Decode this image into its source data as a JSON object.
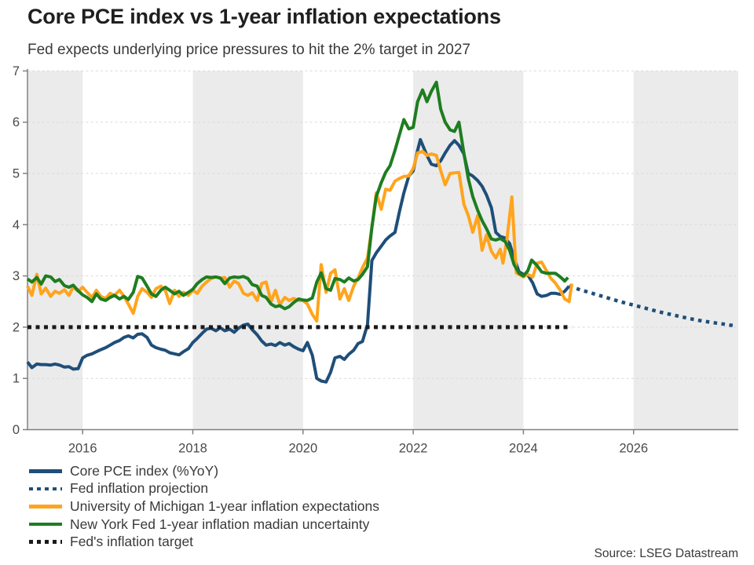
{
  "header": {
    "title": "Core PCE index vs 1-year inflation expectations",
    "subtitle": "Fed expects underlying price pressures to hit the 2% target in 2027"
  },
  "footer": {
    "source": "Source: LSEG Datastream"
  },
  "chart_data": {
    "type": "line",
    "title": "Core PCE index vs 1-year inflation expectations",
    "subtitle": "Fed expects underlying price pressures to hit the 2% target in 2027",
    "xlabel": "",
    "ylabel": "",
    "x_axis": {
      "min": 2015.0,
      "max": 2027.9,
      "ticks": [
        2016,
        2018,
        2020,
        2022,
        2024,
        2026
      ],
      "tick_labels": [
        "2016",
        "2018",
        "2020",
        "2022",
        "2024",
        "2026"
      ]
    },
    "y_axis": {
      "min": 0,
      "max": 7,
      "ticks": [
        0,
        1,
        2,
        3,
        4,
        5,
        6,
        7
      ],
      "tick_labels": [
        "0",
        "1",
        "2",
        "3",
        "4",
        "5",
        "6",
        "7"
      ]
    },
    "grid": "horizontal-dashed",
    "grid_color": "#d9d9d9",
    "axis_color": "#808080",
    "tick_label_color": "#4a4a4a",
    "legend_position": "bottom-left",
    "background_bands": {
      "color": "#ebebeb",
      "ranges": [
        [
          2015.0,
          2016.0
        ],
        [
          2018.0,
          2020.0
        ],
        [
          2022.0,
          2024.0
        ],
        [
          2026.0,
          2027.9
        ]
      ]
    },
    "series": [
      {
        "key": "core-pce",
        "name": "Core PCE index (%YoY)",
        "color": "#1f4e79",
        "style": "solid",
        "width": 4,
        "x": [
          2015.0,
          2015.08,
          2015.17,
          2015.25,
          2015.33,
          2015.42,
          2015.5,
          2015.58,
          2015.67,
          2015.75,
          2015.83,
          2015.92,
          2016.0,
          2016.08,
          2016.17,
          2016.25,
          2016.33,
          2016.42,
          2016.5,
          2016.58,
          2016.67,
          2016.75,
          2016.83,
          2016.92,
          2017.0,
          2017.08,
          2017.17,
          2017.25,
          2017.33,
          2017.42,
          2017.5,
          2017.58,
          2017.67,
          2017.75,
          2017.83,
          2017.92,
          2018.0,
          2018.08,
          2018.17,
          2018.25,
          2018.33,
          2018.42,
          2018.5,
          2018.58,
          2018.67,
          2018.75,
          2018.83,
          2018.92,
          2019.0,
          2019.08,
          2019.17,
          2019.25,
          2019.33,
          2019.42,
          2019.5,
          2019.58,
          2019.67,
          2019.75,
          2019.83,
          2019.92,
          2020.0,
          2020.08,
          2020.17,
          2020.25,
          2020.33,
          2020.42,
          2020.5,
          2020.58,
          2020.67,
          2020.75,
          2020.83,
          2020.92,
          2021.0,
          2021.08,
          2021.17,
          2021.25,
          2021.33,
          2021.42,
          2021.5,
          2021.58,
          2021.67,
          2021.75,
          2021.83,
          2021.92,
          2022.0,
          2022.08,
          2022.13,
          2022.25,
          2022.33,
          2022.42,
          2022.5,
          2022.58,
          2022.67,
          2022.75,
          2022.83,
          2022.92,
          2023.0,
          2023.08,
          2023.17,
          2023.25,
          2023.33,
          2023.42,
          2023.5,
          2023.58,
          2023.67,
          2023.75,
          2023.83,
          2023.92,
          2024.0,
          2024.08,
          2024.17,
          2024.25,
          2024.33,
          2024.42,
          2024.5,
          2024.58,
          2024.67,
          2024.75,
          2024.83
        ],
        "y": [
          1.32,
          1.21,
          1.28,
          1.27,
          1.27,
          1.26,
          1.28,
          1.26,
          1.22,
          1.23,
          1.18,
          1.19,
          1.4,
          1.45,
          1.48,
          1.52,
          1.56,
          1.6,
          1.65,
          1.7,
          1.74,
          1.8,
          1.83,
          1.79,
          1.86,
          1.87,
          1.8,
          1.65,
          1.6,
          1.57,
          1.55,
          1.5,
          1.48,
          1.46,
          1.52,
          1.58,
          1.7,
          1.78,
          1.88,
          1.96,
          1.98,
          1.93,
          1.99,
          1.93,
          1.96,
          1.9,
          1.98,
          2.04,
          2.06,
          1.95,
          1.85,
          1.73,
          1.65,
          1.67,
          1.64,
          1.7,
          1.65,
          1.68,
          1.62,
          1.57,
          1.54,
          1.7,
          1.45,
          1.0,
          0.95,
          0.93,
          1.12,
          1.4,
          1.43,
          1.37,
          1.47,
          1.55,
          1.68,
          1.72,
          2.05,
          3.3,
          3.45,
          3.58,
          3.7,
          3.78,
          3.85,
          4.25,
          4.62,
          4.95,
          5.05,
          5.45,
          5.66,
          5.35,
          5.18,
          5.15,
          5.25,
          5.4,
          5.55,
          5.64,
          5.55,
          5.38,
          5.0,
          4.95,
          4.86,
          4.75,
          4.58,
          4.33,
          3.85,
          3.77,
          3.74,
          3.63,
          3.35,
          3.08,
          3.03,
          3.02,
          2.86,
          2.65,
          2.6,
          2.62,
          2.66,
          2.66,
          2.64,
          2.7,
          2.8
        ]
      },
      {
        "key": "fed-projection",
        "name": "Fed inflation projection",
        "color": "#1f4e79",
        "style": "dotted",
        "width": 4.5,
        "dash": "4.5 5.5",
        "x": [
          2024.83,
          2025.0,
          2025.25,
          2025.5,
          2025.75,
          2026.0,
          2026.25,
          2026.5,
          2026.75,
          2027.0,
          2027.25,
          2027.5,
          2027.7,
          2027.86
        ],
        "y": [
          2.8,
          2.74,
          2.66,
          2.58,
          2.5,
          2.43,
          2.36,
          2.29,
          2.23,
          2.17,
          2.12,
          2.08,
          2.05,
          2.02
        ]
      },
      {
        "key": "umich-expectations",
        "name": "University of Michigan 1-year inflation expectations",
        "color": "#ffa41c",
        "style": "solid",
        "width": 4,
        "x": [
          2015.0,
          2015.08,
          2015.17,
          2015.25,
          2015.33,
          2015.42,
          2015.5,
          2015.58,
          2015.67,
          2015.75,
          2015.83,
          2015.92,
          2016.0,
          2016.08,
          2016.17,
          2016.25,
          2016.33,
          2016.42,
          2016.5,
          2016.58,
          2016.67,
          2016.75,
          2016.83,
          2016.92,
          2017.0,
          2017.08,
          2017.17,
          2017.25,
          2017.33,
          2017.42,
          2017.5,
          2017.58,
          2017.67,
          2017.75,
          2017.83,
          2017.92,
          2018.0,
          2018.08,
          2018.17,
          2018.25,
          2018.33,
          2018.42,
          2018.5,
          2018.58,
          2018.67,
          2018.75,
          2018.83,
          2018.92,
          2019.0,
          2019.08,
          2019.17,
          2019.25,
          2019.33,
          2019.42,
          2019.5,
          2019.58,
          2019.67,
          2019.75,
          2019.83,
          2019.92,
          2020.0,
          2020.08,
          2020.17,
          2020.25,
          2020.33,
          2020.42,
          2020.5,
          2020.58,
          2020.67,
          2020.75,
          2020.83,
          2020.92,
          2021.0,
          2021.08,
          2021.17,
          2021.25,
          2021.33,
          2021.42,
          2021.5,
          2021.58,
          2021.67,
          2021.75,
          2021.83,
          2021.92,
          2022.0,
          2022.08,
          2022.17,
          2022.25,
          2022.33,
          2022.42,
          2022.5,
          2022.58,
          2022.67,
          2022.75,
          2022.83,
          2022.92,
          2023.0,
          2023.08,
          2023.17,
          2023.25,
          2023.33,
          2023.42,
          2023.5,
          2023.58,
          2023.63,
          2023.7,
          2023.79,
          2023.87,
          2024.0,
          2024.08,
          2024.17,
          2024.25,
          2024.33,
          2024.42,
          2024.5,
          2024.58,
          2024.67,
          2024.75,
          2024.83,
          2024.88
        ],
        "y": [
          2.8,
          2.62,
          3.03,
          2.65,
          2.76,
          2.6,
          2.7,
          2.66,
          2.73,
          2.62,
          2.78,
          2.7,
          2.78,
          2.68,
          2.58,
          2.72,
          2.6,
          2.56,
          2.66,
          2.62,
          2.72,
          2.6,
          2.45,
          2.27,
          2.6,
          2.75,
          2.68,
          2.58,
          2.75,
          2.8,
          2.72,
          2.46,
          2.72,
          2.6,
          2.68,
          2.62,
          2.72,
          2.66,
          2.8,
          2.88,
          2.95,
          2.98,
          2.95,
          2.97,
          2.78,
          2.9,
          2.85,
          2.66,
          2.62,
          2.67,
          2.52,
          2.85,
          2.88,
          2.5,
          2.72,
          2.44,
          2.58,
          2.52,
          2.56,
          2.52,
          2.52,
          2.45,
          2.25,
          2.12,
          3.22,
          2.68,
          3.05,
          3.12,
          2.55,
          2.75,
          2.52,
          2.8,
          2.96,
          3.16,
          3.35,
          3.95,
          4.62,
          4.3,
          4.69,
          4.67,
          4.85,
          4.9,
          4.94,
          4.95,
          5.1,
          5.4,
          5.43,
          5.35,
          5.38,
          5.35,
          5.05,
          4.78,
          5.0,
          5.01,
          5.02,
          4.4,
          4.18,
          3.85,
          4.18,
          3.5,
          3.8,
          3.48,
          3.35,
          3.52,
          3.25,
          3.7,
          4.54,
          3.06,
          2.98,
          3.03,
          2.98,
          3.25,
          3.27,
          3.1,
          2.95,
          2.86,
          2.72,
          2.55,
          2.5,
          2.85
        ]
      },
      {
        "key": "nyfed-expectations",
        "name": "New York Fed 1-year inflation madian uncertainty",
        "color": "#1e7d20",
        "style": "solid",
        "width": 4,
        "x": [
          2015.0,
          2015.08,
          2015.17,
          2015.25,
          2015.33,
          2015.42,
          2015.5,
          2015.58,
          2015.67,
          2015.75,
          2015.83,
          2015.92,
          2016.0,
          2016.08,
          2016.17,
          2016.25,
          2016.33,
          2016.42,
          2016.5,
          2016.58,
          2016.67,
          2016.75,
          2016.83,
          2016.92,
          2017.0,
          2017.08,
          2017.17,
          2017.25,
          2017.33,
          2017.42,
          2017.5,
          2017.58,
          2017.67,
          2017.75,
          2017.83,
          2017.92,
          2018.0,
          2018.08,
          2018.17,
          2018.25,
          2018.33,
          2018.42,
          2018.5,
          2018.58,
          2018.67,
          2018.75,
          2018.83,
          2018.92,
          2019.0,
          2019.08,
          2019.17,
          2019.25,
          2019.33,
          2019.42,
          2019.5,
          2019.58,
          2019.67,
          2019.75,
          2019.83,
          2019.92,
          2020.0,
          2020.08,
          2020.17,
          2020.25,
          2020.33,
          2020.42,
          2020.5,
          2020.58,
          2020.67,
          2020.75,
          2020.83,
          2020.92,
          2021.0,
          2021.08,
          2021.17,
          2021.25,
          2021.33,
          2021.42,
          2021.5,
          2021.58,
          2021.67,
          2021.75,
          2021.83,
          2021.92,
          2022.0,
          2022.08,
          2022.17,
          2022.25,
          2022.33,
          2022.42,
          2022.5,
          2022.58,
          2022.67,
          2022.75,
          2022.83,
          2022.92,
          2023.0,
          2023.08,
          2023.17,
          2023.25,
          2023.33,
          2023.42,
          2023.5,
          2023.58,
          2023.67,
          2023.75,
          2023.83,
          2023.92,
          2024.0,
          2024.08,
          2024.15,
          2024.25,
          2024.33,
          2024.42,
          2024.5,
          2024.58,
          2024.67,
          2024.75,
          2024.81
        ],
        "y": [
          2.94,
          2.88,
          2.97,
          2.84,
          3.0,
          2.98,
          2.89,
          2.93,
          2.81,
          2.78,
          2.82,
          2.71,
          2.63,
          2.58,
          2.5,
          2.65,
          2.55,
          2.52,
          2.58,
          2.62,
          2.55,
          2.6,
          2.54,
          2.68,
          2.99,
          2.96,
          2.8,
          2.65,
          2.6,
          2.72,
          2.78,
          2.72,
          2.65,
          2.7,
          2.62,
          2.68,
          2.74,
          2.85,
          2.93,
          2.98,
          2.97,
          2.98,
          2.96,
          2.85,
          2.96,
          2.98,
          2.97,
          2.99,
          2.95,
          2.83,
          2.8,
          2.62,
          2.58,
          2.45,
          2.4,
          2.42,
          2.36,
          2.4,
          2.48,
          2.55,
          2.53,
          2.52,
          2.57,
          2.88,
          3.06,
          2.75,
          2.72,
          2.95,
          2.93,
          2.88,
          2.96,
          2.9,
          2.93,
          3.03,
          3.18,
          3.95,
          4.55,
          4.82,
          5.02,
          5.15,
          5.45,
          5.75,
          6.05,
          5.87,
          5.9,
          6.4,
          6.63,
          6.4,
          6.6,
          6.78,
          6.25,
          6.0,
          5.85,
          5.82,
          6.0,
          5.4,
          4.9,
          4.55,
          4.28,
          4.08,
          3.92,
          3.72,
          3.7,
          3.73,
          3.67,
          3.5,
          3.22,
          3.05,
          3.0,
          3.1,
          3.31,
          3.2,
          3.08,
          3.05,
          3.05,
          3.05,
          2.98,
          2.9,
          2.97
        ]
      },
      {
        "key": "fed-target",
        "name": "Fed's inflation target",
        "color": "#1a1a1a",
        "style": "dotted",
        "width": 5,
        "dash": "5 5.5",
        "x": [
          2015.0,
          2024.88
        ],
        "y": [
          2.0,
          2.0
        ]
      }
    ]
  }
}
